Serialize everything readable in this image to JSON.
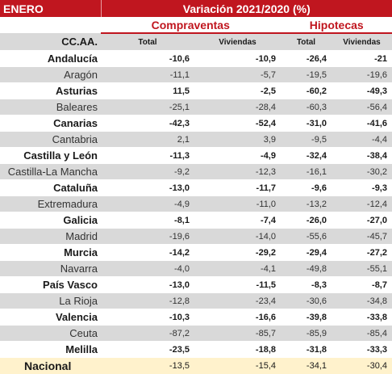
{
  "header": {
    "month": "ENERO",
    "variation_title": "Variación 2021/2020 (%)",
    "group_compraventas": "Compraventas",
    "group_hipotecas": "Hipotecas",
    "region_label": "CC.AA.",
    "col_total_1": "Total",
    "col_viviendas_1": "Viviendas",
    "col_total_2": "Total",
    "col_viviendas_2": "Viviendas"
  },
  "rows": [
    {
      "region": "Andalucía",
      "bold": true,
      "compraventas_total": "-10,6",
      "compraventas_viviendas": "-10,9",
      "hipotecas_total": "-26,4",
      "hipotecas_viviendas": "-21"
    },
    {
      "region": "Aragón",
      "bold": false,
      "compraventas_total": "-11,1",
      "compraventas_viviendas": "-5,7",
      "hipotecas_total": "-19,5",
      "hipotecas_viviendas": "-19,6"
    },
    {
      "region": "Asturias",
      "bold": true,
      "compraventas_total": "11,5",
      "compraventas_viviendas": "-2,5",
      "hipotecas_total": "-60,2",
      "hipotecas_viviendas": "-49,3"
    },
    {
      "region": "Baleares",
      "bold": false,
      "compraventas_total": "-25,1",
      "compraventas_viviendas": "-28,4",
      "hipotecas_total": "-60,3",
      "hipotecas_viviendas": "-56,4"
    },
    {
      "region": "Canarias",
      "bold": true,
      "compraventas_total": "-42,3",
      "compraventas_viviendas": "-52,4",
      "hipotecas_total": "-31,0",
      "hipotecas_viviendas": "-41,6"
    },
    {
      "region": "Cantabria",
      "bold": false,
      "compraventas_total": "2,1",
      "compraventas_viviendas": "3,9",
      "hipotecas_total": "-9,5",
      "hipotecas_viviendas": "-4,4"
    },
    {
      "region": "Castilla y León",
      "bold": true,
      "compraventas_total": "-11,3",
      "compraventas_viviendas": "-4,9",
      "hipotecas_total": "-32,4",
      "hipotecas_viviendas": "-38,4"
    },
    {
      "region": "Castilla-La Mancha",
      "bold": false,
      "compraventas_total": "-9,2",
      "compraventas_viviendas": "-12,3",
      "hipotecas_total": "-16,1",
      "hipotecas_viviendas": "-30,2"
    },
    {
      "region": "Cataluña",
      "bold": true,
      "compraventas_total": "-13,0",
      "compraventas_viviendas": "-11,7",
      "hipotecas_total": "-9,6",
      "hipotecas_viviendas": "-9,3"
    },
    {
      "region": "Extremadura",
      "bold": false,
      "compraventas_total": "-4,9",
      "compraventas_viviendas": "-11,0",
      "hipotecas_total": "-13,2",
      "hipotecas_viviendas": "-12,4"
    },
    {
      "region": "Galicia",
      "bold": true,
      "compraventas_total": "-8,1",
      "compraventas_viviendas": "-7,4",
      "hipotecas_total": "-26,0",
      "hipotecas_viviendas": "-27,0"
    },
    {
      "region": "Madrid",
      "bold": false,
      "compraventas_total": "-19,6",
      "compraventas_viviendas": "-14,0",
      "hipotecas_total": "-55,6",
      "hipotecas_viviendas": "-45,7"
    },
    {
      "region": "Murcia",
      "bold": true,
      "compraventas_total": "-14,2",
      "compraventas_viviendas": "-29,2",
      "hipotecas_total": "-29,4",
      "hipotecas_viviendas": "-27,2"
    },
    {
      "region": "Navarra",
      "bold": false,
      "compraventas_total": "-4,0",
      "compraventas_viviendas": "-4,1",
      "hipotecas_total": "-49,8",
      "hipotecas_viviendas": "-55,1"
    },
    {
      "region": "País Vasco",
      "bold": true,
      "compraventas_total": "-13,0",
      "compraventas_viviendas": "-11,5",
      "hipotecas_total": "-8,3",
      "hipotecas_viviendas": "-8,7"
    },
    {
      "region": "La Rioja",
      "bold": false,
      "compraventas_total": "-12,8",
      "compraventas_viviendas": "-23,4",
      "hipotecas_total": "-30,6",
      "hipotecas_viviendas": "-34,8"
    },
    {
      "region": "Valencia",
      "bold": true,
      "compraventas_total": "-10,3",
      "compraventas_viviendas": "-16,6",
      "hipotecas_total": "-39,8",
      "hipotecas_viviendas": "-33,8"
    },
    {
      "region": "Ceuta",
      "bold": false,
      "compraventas_total": "-87,2",
      "compraventas_viviendas": "-85,7",
      "hipotecas_total": "-85,9",
      "hipotecas_viviendas": "-85,4"
    },
    {
      "region": "Melilla",
      "bold": true,
      "compraventas_total": "-23,5",
      "compraventas_viviendas": "-18,8",
      "hipotecas_total": "-31,8",
      "hipotecas_viviendas": "-33,3"
    }
  ],
  "total": {
    "region": "Nacional",
    "compraventas_total": "-13,5",
    "compraventas_viviendas": "-15,4",
    "hipotecas_total": "-34,1",
    "hipotecas_viviendas": "-30,4"
  },
  "colors": {
    "header_red": "#c0161f",
    "stripe_grey": "#d9d9d9",
    "total_yellow": "#fff2cc"
  }
}
